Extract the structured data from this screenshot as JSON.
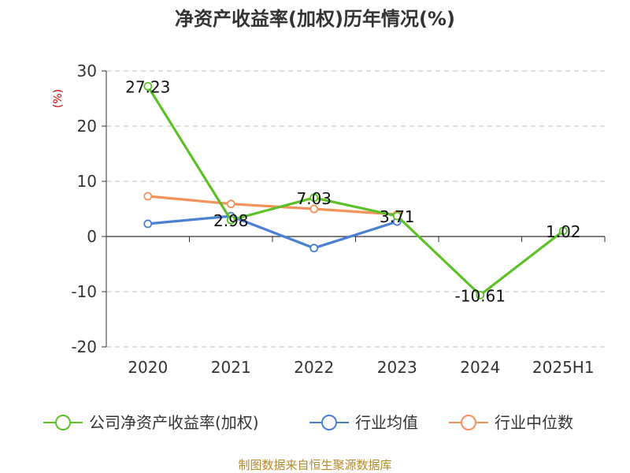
{
  "chart_data": {
    "type": "line",
    "title": "净资产收益率(加权)历年情况(%)",
    "ylabel": "(%)",
    "xlabel": "",
    "categories": [
      "2020",
      "2021",
      "2022",
      "2023",
      "2024",
      "2025H1"
    ],
    "ylim": [
      -20,
      30
    ],
    "yticks": [
      30,
      20,
      10,
      0,
      -10,
      -20
    ],
    "grid": true,
    "legend_position": "bottom",
    "series": [
      {
        "name": "公司净资产收益率(加权)",
        "color": "#5cc126",
        "values": [
          27.23,
          2.98,
          7.03,
          3.71,
          -10.61,
          1.02
        ],
        "labels": [
          "27.23",
          "2.98",
          "7.03",
          "3.71",
          "-10.61",
          "1.02"
        ]
      },
      {
        "name": "行业均值",
        "color": "#4a7fd4",
        "values": [
          2.3,
          3.7,
          -2.1,
          2.7,
          null,
          null
        ]
      },
      {
        "name": "行业中位数",
        "color": "#f5915a",
        "values": [
          7.3,
          5.9,
          5.0,
          4.0,
          null,
          null
        ]
      }
    ]
  },
  "source": "制图数据来自恒生聚源数据库"
}
